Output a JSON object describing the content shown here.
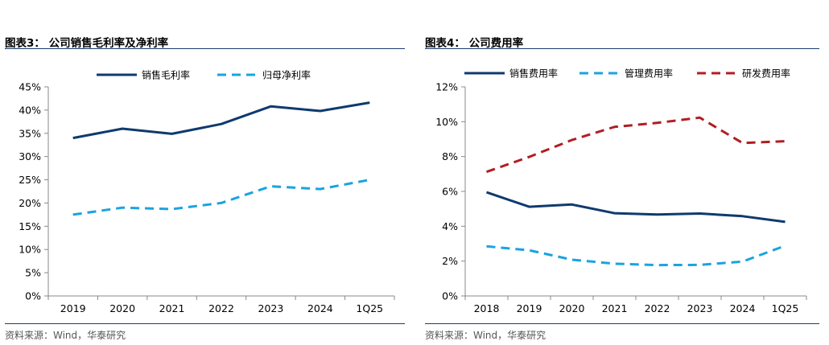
{
  "left_panel": {
    "figure_title": "图表3：  公司销售毛利率及净利率",
    "source": "资料来源：Wind，华泰研究"
  },
  "right_panel": {
    "figure_title": "图表4：  公司费用率",
    "source": "资料来源：Wind，华泰研究"
  },
  "chart_data": [
    {
      "type": "line",
      "title": "公司销售毛利率及净利率",
      "categories": [
        "2019",
        "2020",
        "2021",
        "2022",
        "2023",
        "2024",
        "1Q25"
      ],
      "ylim": [
        0,
        45
      ],
      "yticks": [
        0,
        5,
        10,
        15,
        20,
        25,
        30,
        35,
        40,
        45
      ],
      "ytick_labels": [
        "0%",
        "5%",
        "10%",
        "15%",
        "20%",
        "25%",
        "30%",
        "35%",
        "40%",
        "45%"
      ],
      "xlabel": "",
      "ylabel": "",
      "legend_position": "top-center",
      "series": [
        {
          "name": "销售毛利率",
          "style": "solid",
          "color": "#0e3a6e",
          "values": [
            34.0,
            36.0,
            34.9,
            37.0,
            40.8,
            39.8,
            41.6
          ]
        },
        {
          "name": "归母净利率",
          "style": "dashed",
          "color": "#1aa3e0",
          "values": [
            17.5,
            19.0,
            18.7,
            20.0,
            23.6,
            23.0,
            25.0
          ]
        }
      ]
    },
    {
      "type": "line",
      "title": "公司费用率",
      "categories": [
        "2018",
        "2019",
        "2020",
        "2021",
        "2022",
        "2023",
        "2024",
        "1Q25"
      ],
      "ylim": [
        0,
        12
      ],
      "yticks": [
        0,
        2,
        4,
        6,
        8,
        10,
        12
      ],
      "ytick_labels": [
        "0%",
        "2%",
        "4%",
        "6%",
        "8%",
        "10%",
        "12%"
      ],
      "xlabel": "",
      "ylabel": "",
      "legend_position": "top",
      "series": [
        {
          "name": "销售费用率",
          "style": "solid",
          "color": "#0e3a6e",
          "values": [
            5.95,
            5.12,
            5.25,
            4.75,
            4.67,
            4.73,
            4.58,
            4.25
          ]
        },
        {
          "name": "管理费用率",
          "style": "dashed",
          "color": "#1aa3e0",
          "values": [
            2.85,
            2.62,
            2.08,
            1.85,
            1.77,
            1.78,
            1.97,
            2.88
          ]
        },
        {
          "name": "研发费用率",
          "style": "dashed",
          "color": "#b01e23",
          "values": [
            7.12,
            7.98,
            8.95,
            9.7,
            9.93,
            10.23,
            8.78,
            8.88
          ]
        }
      ]
    }
  ]
}
